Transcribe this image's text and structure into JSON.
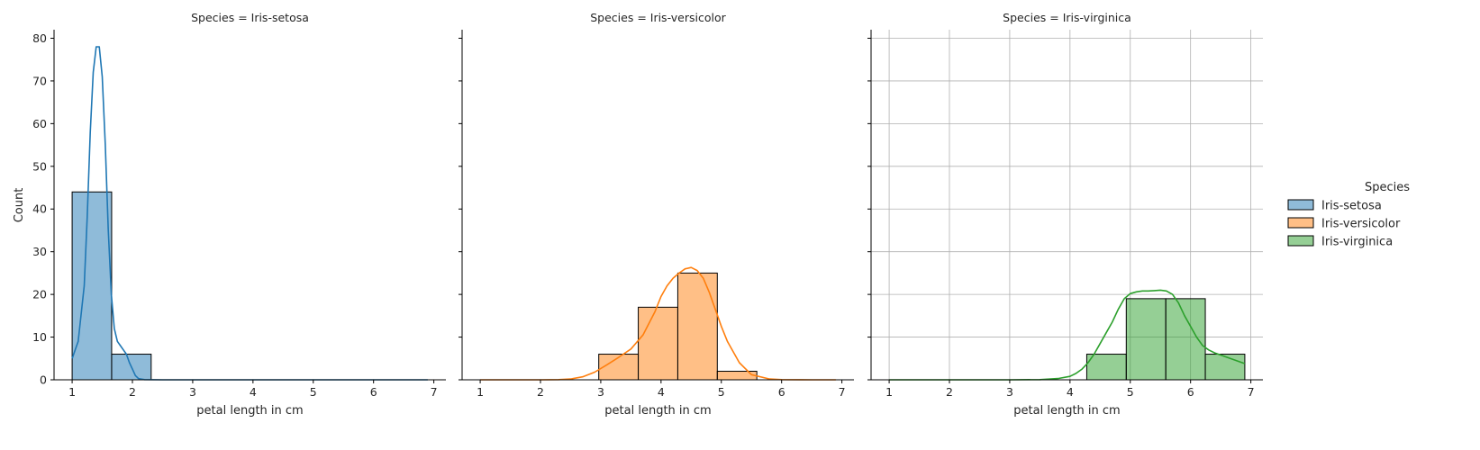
{
  "chart_data": {
    "type": "bar",
    "facet_by": "Species",
    "ylabel": "Count",
    "ylim": [
      0,
      82
    ],
    "yticks": [
      0,
      10,
      20,
      30,
      40,
      50,
      60,
      70,
      80
    ],
    "xlim": [
      0.7,
      7.2
    ],
    "xticks": [
      1,
      2,
      3,
      4,
      5,
      6,
      7
    ],
    "bin_edges": [
      1.0,
      1.6556,
      2.3111,
      2.9667,
      3.6222,
      4.2778,
      4.9333,
      5.5889,
      6.2444,
      6.9
    ],
    "shared_y": true,
    "legend": {
      "title": "Species",
      "placement": "right",
      "entries": [
        {
          "label": "Iris-setosa",
          "color": "#1f77b4"
        },
        {
          "label": "Iris-versicolor",
          "color": "#ff7f0e"
        },
        {
          "label": "Iris-virginica",
          "color": "#2ca02c"
        }
      ]
    },
    "panels": [
      {
        "title": "Species = Iris-setosa",
        "xlabel": "petal length in cm",
        "color": "#1f77b4",
        "grid": false,
        "counts": [
          44,
          6,
          0,
          0,
          0,
          0,
          0,
          0,
          0
        ],
        "kde": {
          "x": [
            1.0,
            1.1,
            1.2,
            1.25,
            1.3,
            1.35,
            1.4,
            1.45,
            1.5,
            1.55,
            1.6,
            1.65,
            1.7,
            1.75,
            1.8,
            1.85,
            1.9,
            1.95,
            2.0,
            2.05,
            2.1,
            2.2,
            2.5,
            3.0,
            4.0,
            5.0,
            6.0,
            6.9
          ],
          "y": [
            5,
            9,
            22,
            38,
            58,
            72,
            78,
            78,
            71,
            55,
            35,
            20,
            12,
            9,
            8,
            7,
            6,
            4,
            2.5,
            1,
            0.3,
            0.05,
            0,
            0,
            0,
            0,
            0,
            0
          ]
        }
      },
      {
        "title": "Species = Iris-versicolor",
        "xlabel": "petal length in cm",
        "color": "#ff7f0e",
        "grid": false,
        "counts": [
          0,
          0,
          0,
          6,
          17,
          25,
          2,
          0,
          0
        ],
        "kde": {
          "x": [
            1.0,
            1.5,
            2.0,
            2.3,
            2.5,
            2.7,
            2.9,
            3.1,
            3.3,
            3.5,
            3.7,
            3.9,
            4.0,
            4.1,
            4.2,
            4.3,
            4.4,
            4.5,
            4.6,
            4.7,
            4.8,
            4.9,
            5.0,
            5.1,
            5.3,
            5.5,
            5.8,
            6.0,
            6.5,
            6.9
          ],
          "y": [
            0,
            0,
            0,
            0.05,
            0.2,
            0.7,
            1.8,
            3.5,
            5.3,
            7.2,
            10.5,
            16,
            19.5,
            22,
            23.8,
            25,
            26,
            26.3,
            25.6,
            23.8,
            20.5,
            16.5,
            12.5,
            9,
            4,
            1.2,
            0.2,
            0.05,
            0,
            0
          ]
        }
      },
      {
        "title": "Species = Iris-virginica",
        "xlabel": "petal length in cm",
        "color": "#2ca02c",
        "grid": true,
        "counts": [
          0,
          0,
          0,
          0,
          0,
          6,
          19,
          19,
          6
        ],
        "kde": {
          "x": [
            1.0,
            2.0,
            3.0,
            3.5,
            3.8,
            4.0,
            4.1,
            4.2,
            4.3,
            4.4,
            4.5,
            4.6,
            4.7,
            4.8,
            4.9,
            5.0,
            5.1,
            5.2,
            5.3,
            5.4,
            5.5,
            5.6,
            5.7,
            5.8,
            5.9,
            6.0,
            6.1,
            6.2,
            6.3,
            6.4,
            6.5,
            6.6,
            6.7,
            6.8,
            6.9
          ],
          "y": [
            0,
            0,
            0,
            0.05,
            0.3,
            0.8,
            1.5,
            2.5,
            4,
            6,
            8.5,
            11,
            13.5,
            16.5,
            19,
            20.2,
            20.6,
            20.8,
            20.8,
            20.9,
            21,
            20.8,
            20,
            18,
            15,
            12.5,
            10,
            8,
            7,
            6.3,
            5.8,
            5.3,
            4.8,
            4.3,
            3.8
          ]
        }
      }
    ]
  }
}
